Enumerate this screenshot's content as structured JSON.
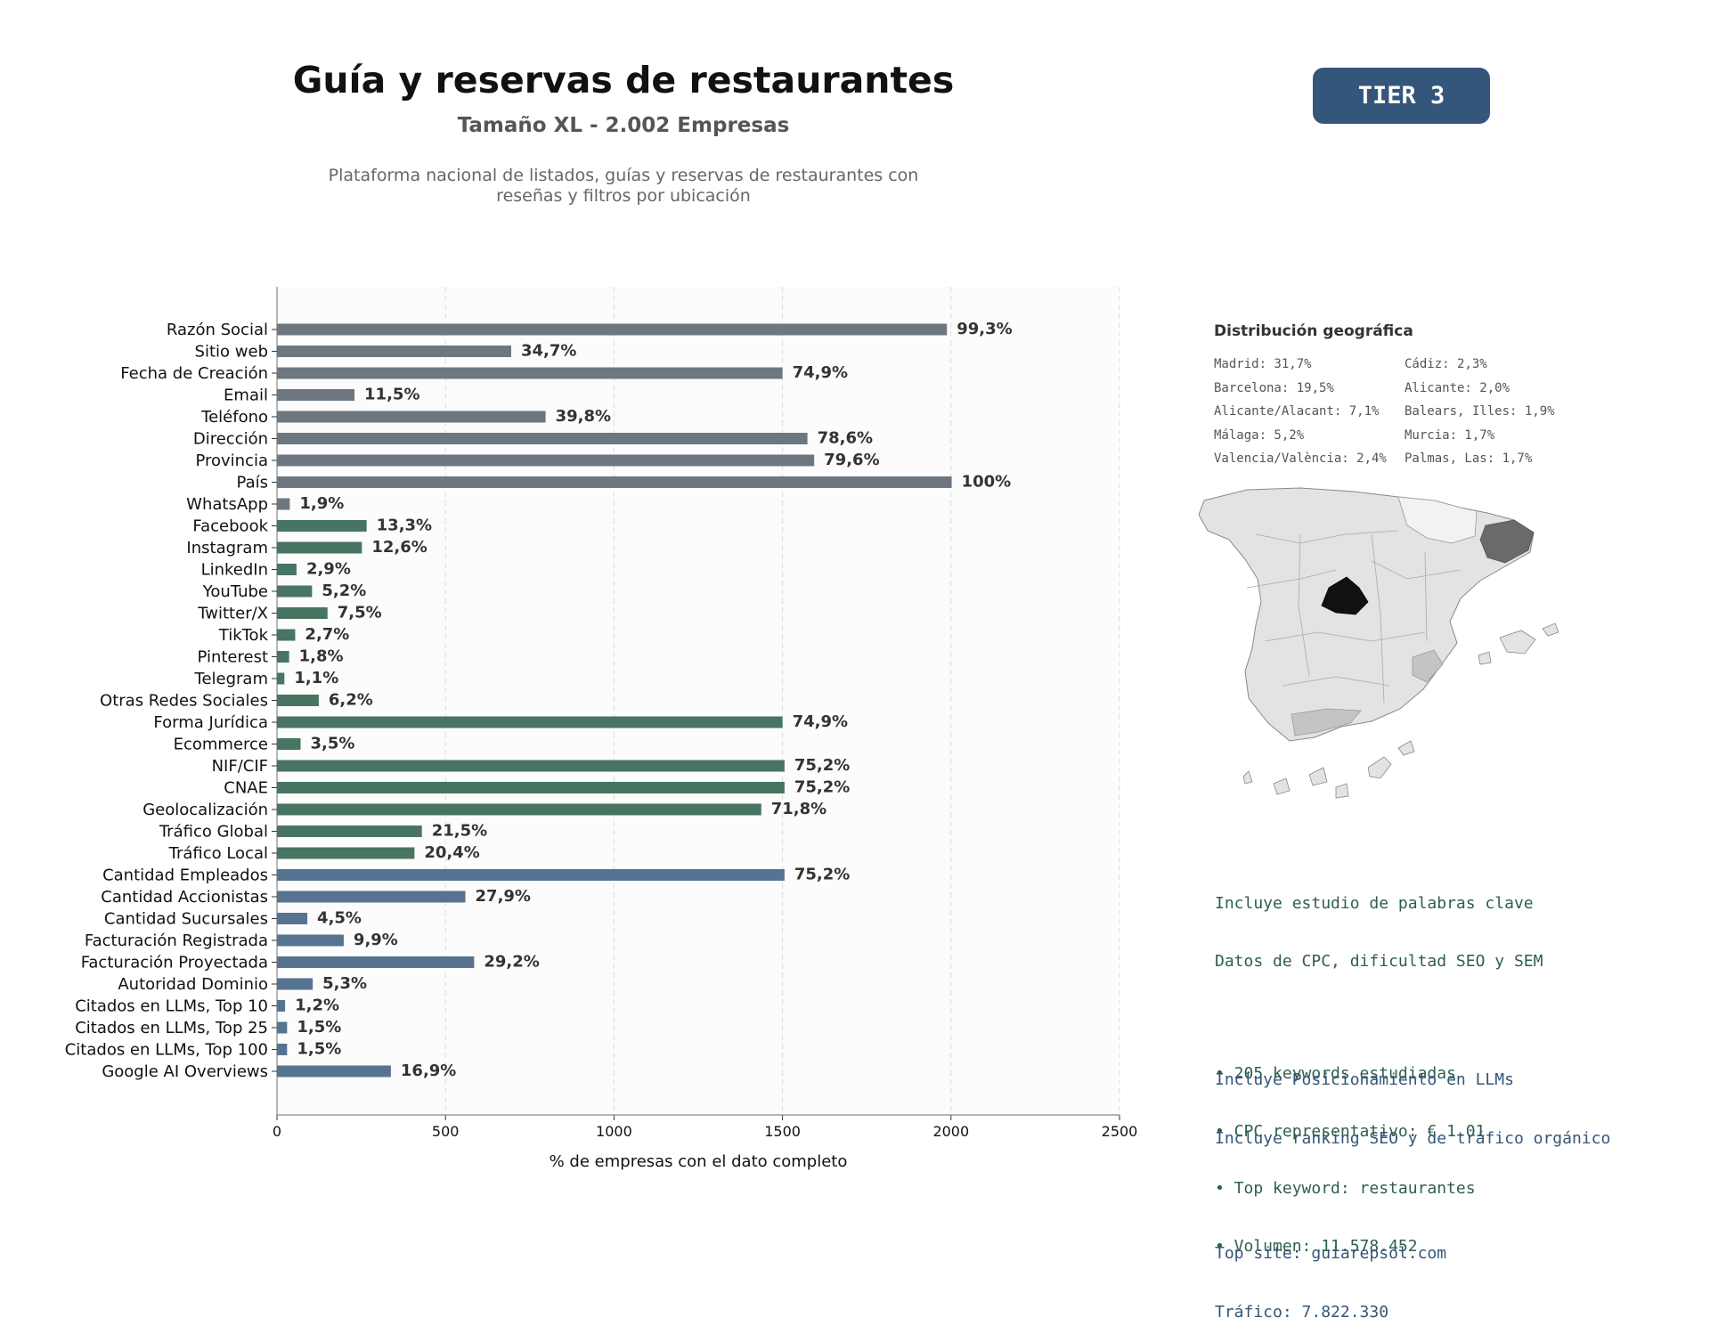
{
  "header": {
    "title": "Guía y reservas de restaurantes",
    "subtitle": "Tamaño XL - 2.002 Empresas",
    "description_line1": "Plataforma nacional de listados, guías y reservas de restaurantes con",
    "description_line2": "reseñas y filtros por ubicación",
    "tier_label": "TIER 3"
  },
  "chart_data": {
    "type": "bar",
    "orientation": "horizontal",
    "xlabel": "% de empresas con el dato completo",
    "xlim": [
      0,
      2500
    ],
    "xticks": [
      0,
      500,
      1000,
      1500,
      2000,
      2500
    ],
    "grid": true,
    "colors": {
      "identity": "#6e7780",
      "digital": "#477562",
      "business": "#567391"
    },
    "categories": [
      "Razón Social",
      "Sitio web",
      "Fecha de Creación",
      "Email",
      "Teléfono",
      "Dirección",
      "Provincia",
      "País",
      "WhatsApp",
      "Facebook",
      "Instagram",
      "LinkedIn",
      "YouTube",
      "Twitter/X",
      "TikTok",
      "Pinterest",
      "Telegram",
      "Otras Redes Sociales",
      "Forma Jurídica",
      "Ecommerce",
      "NIF/CIF",
      "CNAE",
      "Geolocalización",
      "Tráfico Global",
      "Tráfico Local",
      "Cantidad Empleados",
      "Cantidad Accionistas",
      "Cantidad Sucursales",
      "Facturación Registrada",
      "Facturación Proyectada",
      "Autoridad Dominio",
      "Citados en LLMs, Top 10",
      "Citados en LLMs, Top 25",
      "Citados en LLMs, Top 100",
      "Google AI Overviews"
    ],
    "values": [
      1988,
      695,
      1500,
      230,
      797,
      1574,
      1594,
      2002,
      38,
      266,
      252,
      58,
      104,
      150,
      54,
      36,
      22,
      124,
      1500,
      70,
      1506,
      1506,
      1437,
      430,
      408,
      1506,
      559,
      90,
      198,
      585,
      106,
      24,
      30,
      30,
      338
    ],
    "labels": [
      "99,3%",
      "34,7%",
      "74,9%",
      "11,5%",
      "39,8%",
      "78,6%",
      "79,6%",
      "100%",
      "1,9%",
      "13,3%",
      "12,6%",
      "2,9%",
      "5,2%",
      "7,5%",
      "2,7%",
      "1,8%",
      "1,1%",
      "6,2%",
      "74,9%",
      "3,5%",
      "75,2%",
      "75,2%",
      "71,8%",
      "21,5%",
      "20,4%",
      "75,2%",
      "27,9%",
      "4,5%",
      "9,9%",
      "29,2%",
      "5,3%",
      "1,2%",
      "1,5%",
      "1,5%",
      "16,9%"
    ],
    "groups": [
      "identity",
      "identity",
      "identity",
      "identity",
      "identity",
      "identity",
      "identity",
      "identity",
      "identity",
      "digital",
      "digital",
      "digital",
      "digital",
      "digital",
      "digital",
      "digital",
      "digital",
      "digital",
      "digital",
      "digital",
      "digital",
      "digital",
      "digital",
      "digital",
      "digital",
      "business",
      "business",
      "business",
      "business",
      "business",
      "business",
      "business",
      "business",
      "business",
      "business"
    ]
  },
  "geo": {
    "title": "Distribución geográfica",
    "items": [
      "Madrid: 31,7%",
      "Cádiz: 2,3%",
      "Barcelona: 19,5%",
      "Alicante: 2,0%",
      "Alicante/Alacant: 7,1%",
      "Balears, Illes: 1,9%",
      "Málaga: 5,2%",
      "Murcia: 1,7%",
      "Valencia/València: 2,4%",
      "Palmas, Las: 1,7%"
    ],
    "map_colors": {
      "base": "#e3e3e3",
      "madrid": "#111111",
      "barcelona": "#6a6a6a",
      "light": "#f2f2f2",
      "mid": "#c4c4c4"
    }
  },
  "seo": {
    "line1": "Incluye estudio de palabras clave",
    "line2": "Datos de CPC, dificultad SEO y SEM",
    "bullet1": "• 205 keywords estudiadas",
    "bullet2": "• CPC representativo: € 1.01",
    "bullet3": "• Top keyword: restaurantes",
    "bullet4": "• Volumen: 11.578.452"
  },
  "llm": {
    "line1": "Incluye Posicionamiento en LLMs",
    "line2": "Incluye ranking SEO y de tráfico orgánico",
    "site": "Top site: guiarepsol.com",
    "traffic": "Tráfico: 7.822.330"
  }
}
